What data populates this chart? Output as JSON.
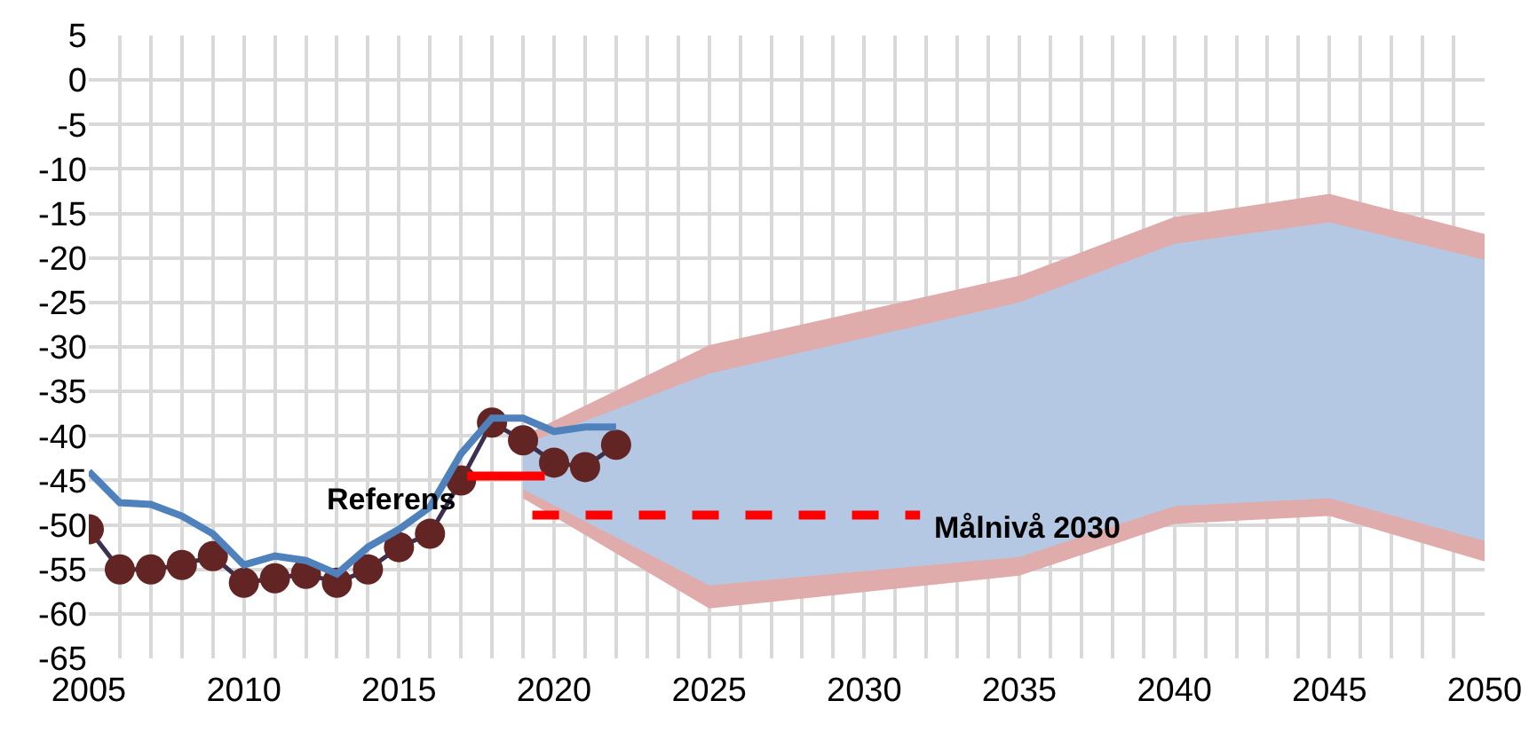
{
  "chart_data": {
    "type": "line",
    "x": [
      2005,
      2006,
      2007,
      2008,
      2009,
      2010,
      2011,
      2012,
      2013,
      2014,
      2015,
      2016,
      2017,
      2018,
      2019,
      2020,
      2021,
      2022
    ],
    "series": [
      {
        "type": "line",
        "color": "#e0abab",
        "x": [
          2019,
          2025,
          2035,
          2040,
          2045,
          2050
        ],
        "values": [
          null,
          null,
          null,
          null,
          null,
          null
        ],
        "lower": [
          -47,
          -59.4,
          -55.7,
          -49.9,
          -49,
          -54.1
        ],
        "upper": [
          -40,
          -29.8,
          -22,
          -15.4,
          -12.8,
          -17.3
        ]
      },
      {
        "type": "line",
        "color": "#b5c8e3",
        "x": [
          2019,
          2025,
          2035,
          2040,
          2045,
          2050
        ],
        "values": [
          null,
          null,
          null,
          null,
          null,
          null
        ],
        "lower": [
          -46,
          -56.8,
          -53.6,
          -47.9,
          -47,
          -51.8
        ],
        "upper": [
          -41,
          -33,
          -25,
          -18.4,
          -16,
          -20.2
        ]
      },
      {
        "color": "#632523",
        "marker": "circle",
        "values": [
          -50.5,
          -55,
          -55,
          -54.5,
          -53.5,
          -56.5,
          -56,
          -55.5,
          -56.5,
          -55,
          -52.5,
          -51,
          -45,
          -38.5,
          -40.5,
          -43,
          -43.5,
          -41
        ]
      },
      {
        "color": "#4f81bd",
        "values": [
          -44,
          -47.5,
          -47.7,
          -49,
          -51,
          -54.5,
          -53.5,
          -54,
          -55.5,
          -52.5,
          -50.5,
          -48,
          -42,
          -38,
          -38,
          -39.5,
          -39,
          -39
        ]
      },
      {
        "name": "Referens",
        "color": "#ff0000",
        "line_style": "solid",
        "x": [
          2017.2,
          2019.7
        ],
        "values": [
          -44.5,
          -44.5
        ]
      },
      {
        "name": "Målnivå 2030",
        "color": "#ff0000",
        "line_style": "dashed",
        "x": [
          2019.3,
          2031.8
        ],
        "values": [
          -48.9,
          -48.9
        ]
      }
    ],
    "xlim": [
      2005,
      2050
    ],
    "xticks": [
      2005,
      2010,
      2015,
      2020,
      2025,
      2030,
      2035,
      2040,
      2045,
      2050
    ],
    "ylim": [
      -65,
      5
    ],
    "yticks": [
      5,
      0,
      -5,
      -10,
      -15,
      -20,
      -25,
      -30,
      -35,
      -40,
      -45,
      -50,
      -55,
      -60,
      -65
    ],
    "grid": true,
    "legend": false
  }
}
